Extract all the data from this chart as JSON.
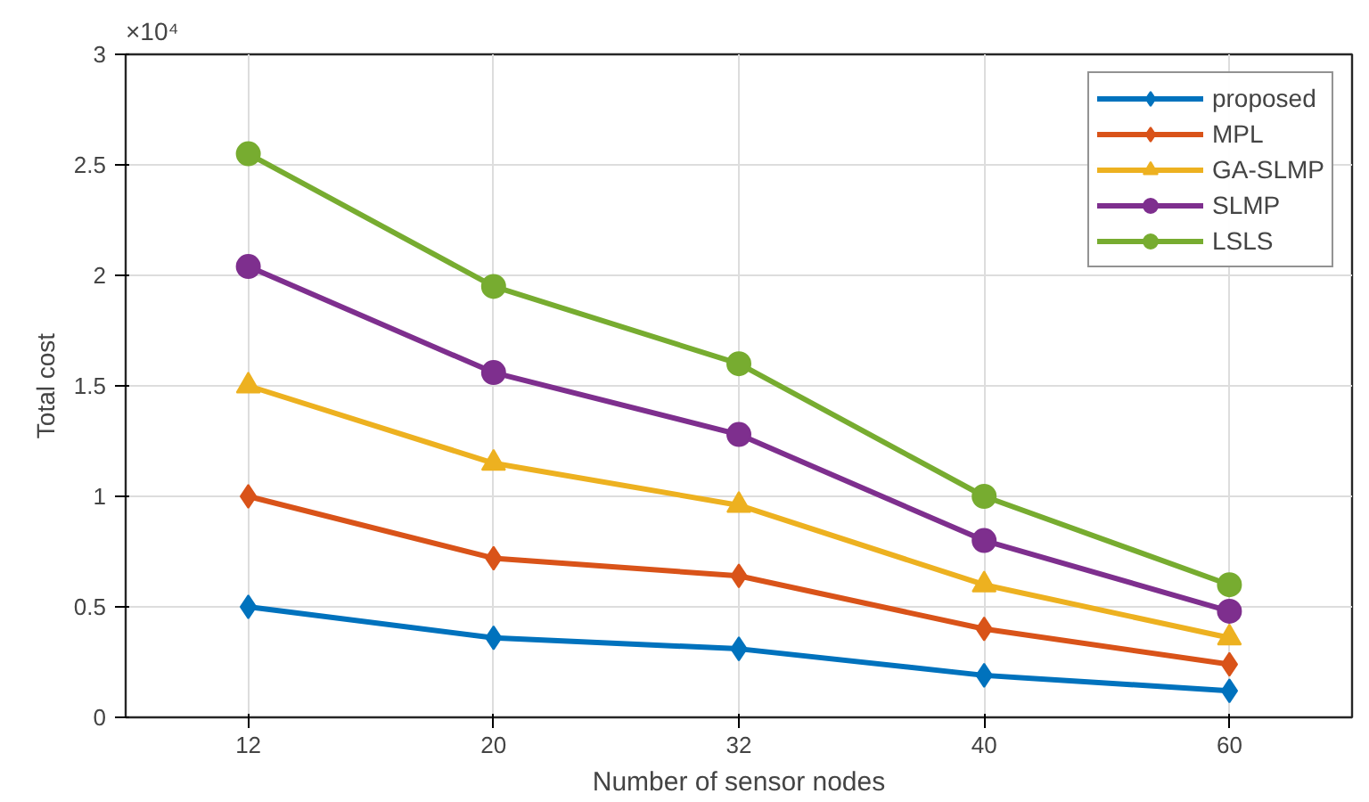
{
  "chart_data": {
    "type": "line",
    "xlabel": "Number of sensor nodes",
    "ylabel": "Total cost",
    "categories": [
      "12",
      "20",
      "32",
      "40",
      "60"
    ],
    "series": [
      {
        "name": "proposed",
        "color": "#0072bd",
        "marker": "diamond",
        "values": [
          0.5,
          0.36,
          0.31,
          0.19,
          0.12
        ]
      },
      {
        "name": "MPL",
        "color": "#d95319",
        "marker": "diamond",
        "values": [
          1.0,
          0.72,
          0.64,
          0.4,
          0.24
        ]
      },
      {
        "name": "GA-SLMP",
        "color": "#edb120",
        "marker": "triangle",
        "values": [
          1.5,
          1.15,
          0.96,
          0.6,
          0.36
        ]
      },
      {
        "name": "SLMP",
        "color": "#7e2f8e",
        "marker": "circle",
        "values": [
          2.04,
          1.56,
          1.28,
          0.8,
          0.48
        ]
      },
      {
        "name": "LSLS",
        "color": "#77ac30",
        "marker": "circle",
        "values": [
          2.55,
          1.95,
          1.6,
          1.0,
          0.6
        ]
      }
    ],
    "ylim": [
      0,
      3
    ],
    "yticks": [
      0,
      0.5,
      1,
      1.5,
      2,
      2.5,
      3
    ],
    "annotations": [
      "×10⁴"
    ],
    "grid": true,
    "legend": "top right",
    "line_style": "solid"
  }
}
